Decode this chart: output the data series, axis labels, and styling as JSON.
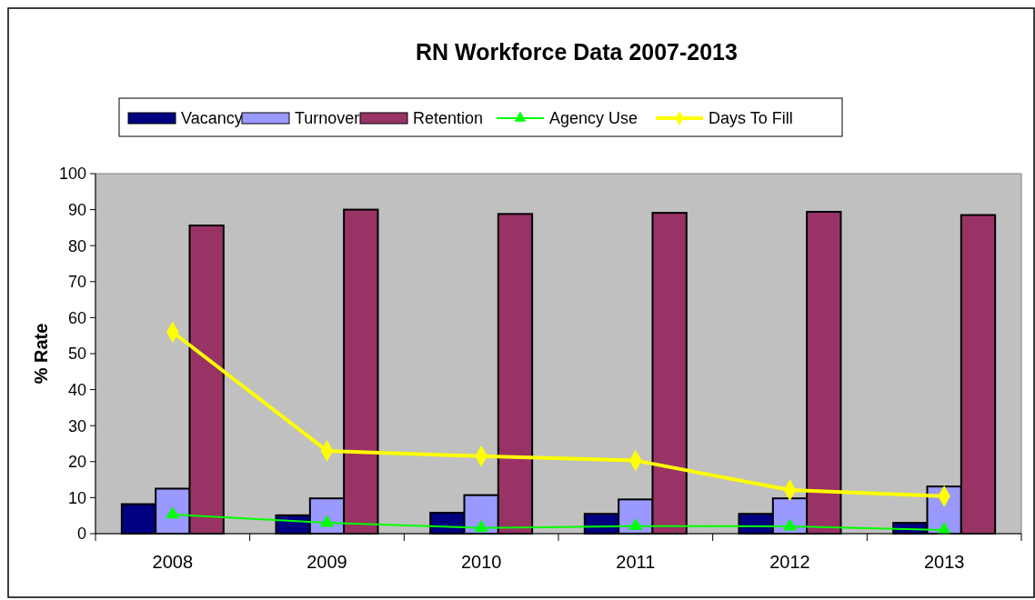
{
  "chart_data": {
    "type": "bar",
    "title": "RN Workforce Data 2007-2013",
    "ylabel": "% Rate",
    "categories": [
      "2008",
      "2009",
      "2010",
      "2011",
      "2012",
      "2013"
    ],
    "series": [
      {
        "name": "Vacancy",
        "color": "#000080",
        "values": [
          8.2,
          5.1,
          5.8,
          5.5,
          5.5,
          3.0
        ]
      },
      {
        "name": "Turnover",
        "color": "#9999ff",
        "values": [
          12.5,
          9.8,
          10.7,
          9.5,
          9.8,
          13.1
        ]
      },
      {
        "name": "Retention",
        "color": "#993366",
        "values": [
          85.6,
          90,
          88.8,
          89.1,
          89.4,
          88.5
        ]
      },
      {
        "name": "Agency Use",
        "type": "line",
        "color": "#00ff00",
        "marker": "triangle",
        "values": [
          5.3,
          3.0,
          1.6,
          2.1,
          2.0,
          1.0
        ]
      },
      {
        "name": "Days To Fill",
        "type": "line",
        "color": "#ffff00",
        "marker": "diamond",
        "values": [
          56,
          23,
          21.5,
          20.3,
          12.1,
          10.4
        ]
      }
    ],
    "ylim": [
      0,
      100
    ],
    "yticks": [
      0,
      10,
      20,
      30,
      40,
      50,
      60,
      70,
      80,
      90,
      100
    ],
    "grid": false,
    "legend": "top"
  }
}
